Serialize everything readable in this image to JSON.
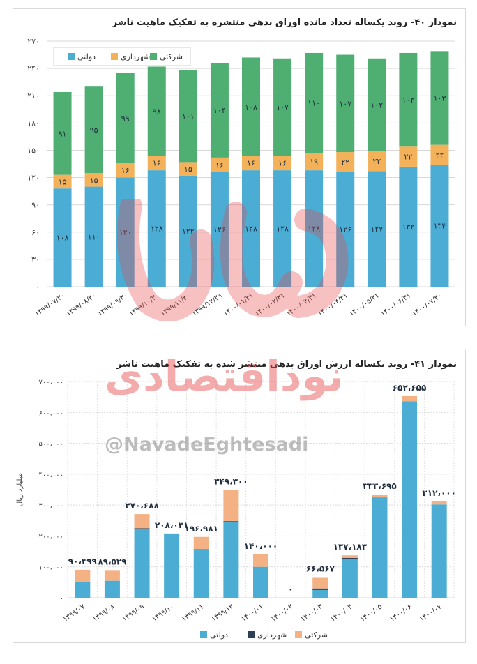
{
  "chart_data": [
    {
      "type": "bar",
      "stacked": true,
      "title": "نمودار ۴۰- روند یکساله تعداد مانده اوراق بدهی منتشره به تفکیک ماهیت ناشر",
      "categories": [
        "۱۳۹۹/۰۷/۳۰",
        "۱۳۹۹/۰۸/۳۰",
        "۱۳۹۹/۰۹/۳۰",
        "۱۳۹۹/۱۰/۳۰",
        "۱۳۹۹/۱۱/۳۰",
        "۱۳۹۹/۱۲/۲۹",
        "۱۴۰۰/۰۱/۳۱",
        "۱۴۰۰/۰۲/۳۱",
        "۱۴۰۰/۰۳/۳۱",
        "۱۴۰۰/۰۴/۳۱",
        "۱۴۰۰/۰۵/۳۱",
        "۱۴۰۰/۰۶/۳۱",
        "۱۴۰۰/۰۷/۳۰"
      ],
      "series": [
        {
          "name": "دولتی",
          "color": "#4bacd4",
          "values": [
            108,
            110,
            120,
            128,
            122,
            126,
            128,
            128,
            128,
            126,
            127,
            132,
            134
          ],
          "labels": [
            "۱۰۸",
            "۱۱۰",
            "۱۲۰",
            "۱۲۸",
            "۱۲۲",
            "۱۲۶",
            "۱۲۸",
            "۱۲۸",
            "۱۲۸",
            "۱۲۶",
            "۱۲۷",
            "۱۳۲",
            "۱۳۴"
          ]
        },
        {
          "name": "شهرداری",
          "color": "#f3b15a",
          "values": [
            15,
            15,
            16,
            16,
            15,
            16,
            16,
            16,
            19,
            22,
            22,
            22,
            22
          ],
          "labels": [
            "۱۵",
            "۱۵",
            "۱۶",
            "۱۶",
            "۱۵",
            "۱۶",
            "۱۶",
            "۱۶",
            "۱۹",
            "۲۲",
            "۲۲",
            "۲۲",
            "۲۲"
          ]
        },
        {
          "name": "شرکتی",
          "color": "#4fae72",
          "values": [
            91,
            95,
            99,
            98,
            101,
            104,
            108,
            107,
            110,
            107,
            102,
            103,
            103
          ],
          "labels": [
            "۹۱",
            "۹۵",
            "۹۹",
            "۹۸",
            "۱۰۱",
            "۱۰۴",
            "۱۰۸",
            "۱۰۷",
            "۱۱۰",
            "۱۰۷",
            "۱۰۲",
            "۱۰۳",
            "۱۰۳"
          ]
        }
      ],
      "yticks": [
        0,
        30,
        60,
        90,
        120,
        150,
        180,
        210,
        240,
        270
      ],
      "ytick_labels": [
        "۰",
        "۳۰",
        "۶۰",
        "۹۰",
        "۱۲۰",
        "۱۵۰",
        "۱۸۰",
        "۲۱۰",
        "۲۴۰",
        "۲۷۰"
      ],
      "ylim": [
        0,
        270
      ],
      "grid": true,
      "legend_position": "top-left"
    },
    {
      "type": "bar",
      "stacked": true,
      "title": "نمودار ۴۱- روند یکساله ارزش اوراق بدهی منتشر شده به تفکیک ماهیت ناشر",
      "ylabel": "میلیارد ریال",
      "categories": [
        "۱۳۹۹/۰۷",
        "۱۳۹۹/۰۸",
        "۱۳۹۹/۰۹",
        "۱۳۹۹/۱۰",
        "۱۳۹۹/۱۱",
        "۱۳۹۹/۱۲",
        "۱۴۰۰/۰۱",
        "۱۴۰۰/۰۲",
        "۱۴۰۰/۰۳",
        "۱۴۰۰/۰۴",
        "۱۴۰۰/۰۵",
        "۱۴۰۰/۰۶",
        "۱۴۰۰/۰۷"
      ],
      "series": [
        {
          "name": "دولتی",
          "color": "#4bacd4",
          "values": [
            50000,
            55000,
            222000,
            208031,
            158000,
            245000,
            100000,
            0,
            25000,
            127000,
            325000,
            636000,
            302000
          ]
        },
        {
          "name": "شهرداری",
          "color": "#2e4057",
          "values": [
            0,
            0,
            3000,
            0,
            0,
            3000,
            0,
            0,
            5000,
            2000,
            0,
            0,
            0
          ]
        },
        {
          "name": "شرکتی",
          "color": "#f4b183",
          "values": [
            40499,
            34529,
            45688,
            0,
            38981,
            101300,
            40000,
            0,
            36567,
            8183,
            8695,
            16655,
            10000
          ]
        }
      ],
      "totals": [
        "۹۰،۴۹۹",
        "۸۹،۵۲۹",
        "۲۷۰،۶۸۸",
        "۲۰۸،۰۳۱",
        "۱۹۶،۹۸۱",
        "۳۴۹،۳۰۰",
        "۱۴۰،۰۰۰",
        "۰",
        "۶۶،۵۶۷",
        "۱۳۷،۱۸۳",
        "۳۳۳،۶۹۵",
        "۶۵۲،۶۵۵",
        "۳۱۲،۰۰۰"
      ],
      "yticks": [
        0,
        100000,
        200000,
        300000,
        400000,
        500000,
        600000,
        700000
      ],
      "ytick_labels": [
        "۰",
        "۱۰۰،۰۰۰",
        "۲۰۰،۰۰۰",
        "۳۰۰،۰۰۰",
        "۴۰۰،۰۰۰",
        "۵۰۰،۰۰۰",
        "۶۰۰،۰۰۰",
        "۷۰۰،۰۰۰"
      ],
      "ylim": [
        0,
        700000
      ],
      "grid": true,
      "legend_position": "bottom"
    }
  ],
  "watermark": {
    "text_fa": "نوداقتصادی",
    "handle": "@NavadeEghtesadi",
    "color": "#e8474a"
  }
}
